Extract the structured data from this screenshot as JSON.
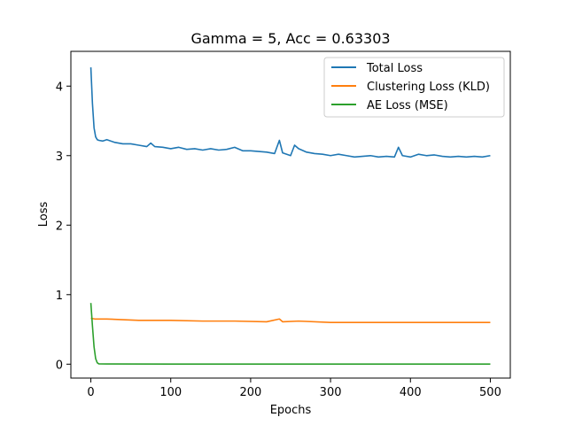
{
  "chart_data": {
    "type": "line",
    "title": "Gamma = 5, Acc = 0.63303",
    "xlabel": "Epochs",
    "ylabel": "Loss",
    "xlim": [
      -25,
      525
    ],
    "ylim": [
      -0.2,
      4.5
    ],
    "xticks": [
      0,
      100,
      200,
      300,
      400,
      500
    ],
    "yticks": [
      0,
      1,
      2,
      3,
      4
    ],
    "grid": false,
    "legend_position": "top-right",
    "series": [
      {
        "name": "Total Loss",
        "color": "#1f77b4",
        "points": [
          [
            0,
            4.27
          ],
          [
            2,
            3.75
          ],
          [
            4,
            3.4
          ],
          [
            6,
            3.27
          ],
          [
            8,
            3.23
          ],
          [
            10,
            3.22
          ],
          [
            15,
            3.21
          ],
          [
            20,
            3.23
          ],
          [
            30,
            3.19
          ],
          [
            40,
            3.17
          ],
          [
            50,
            3.17
          ],
          [
            60,
            3.15
          ],
          [
            70,
            3.13
          ],
          [
            75,
            3.18
          ],
          [
            80,
            3.13
          ],
          [
            90,
            3.12
          ],
          [
            100,
            3.1
          ],
          [
            110,
            3.12
          ],
          [
            120,
            3.09
          ],
          [
            130,
            3.1
          ],
          [
            140,
            3.08
          ],
          [
            150,
            3.1
          ],
          [
            160,
            3.08
          ],
          [
            170,
            3.09
          ],
          [
            180,
            3.12
          ],
          [
            190,
            3.07
          ],
          [
            200,
            3.07
          ],
          [
            210,
            3.06
          ],
          [
            220,
            3.05
          ],
          [
            230,
            3.03
          ],
          [
            236,
            3.22
          ],
          [
            240,
            3.04
          ],
          [
            250,
            3.0
          ],
          [
            255,
            3.15
          ],
          [
            260,
            3.1
          ],
          [
            270,
            3.05
          ],
          [
            280,
            3.03
          ],
          [
            290,
            3.02
          ],
          [
            300,
            3.0
          ],
          [
            310,
            3.02
          ],
          [
            320,
            3.0
          ],
          [
            330,
            2.98
          ],
          [
            340,
            2.99
          ],
          [
            350,
            3.0
          ],
          [
            360,
            2.98
          ],
          [
            370,
            2.99
          ],
          [
            380,
            2.98
          ],
          [
            385,
            3.12
          ],
          [
            390,
            3.0
          ],
          [
            400,
            2.98
          ],
          [
            410,
            3.02
          ],
          [
            420,
            3.0
          ],
          [
            430,
            3.01
          ],
          [
            440,
            2.99
          ],
          [
            450,
            2.98
          ],
          [
            460,
            2.99
          ],
          [
            470,
            2.98
          ],
          [
            480,
            2.99
          ],
          [
            490,
            2.98
          ],
          [
            500,
            3.0
          ]
        ]
      },
      {
        "name": "Clustering Loss (KLD)",
        "color": "#ff7f0e",
        "points": [
          [
            0,
            0.66
          ],
          [
            5,
            0.65
          ],
          [
            10,
            0.65
          ],
          [
            20,
            0.65
          ],
          [
            40,
            0.64
          ],
          [
            60,
            0.63
          ],
          [
            80,
            0.63
          ],
          [
            100,
            0.63
          ],
          [
            140,
            0.62
          ],
          [
            180,
            0.62
          ],
          [
            220,
            0.61
          ],
          [
            236,
            0.65
          ],
          [
            240,
            0.61
          ],
          [
            260,
            0.62
          ],
          [
            300,
            0.6
          ],
          [
            340,
            0.6
          ],
          [
            380,
            0.6
          ],
          [
            420,
            0.6
          ],
          [
            460,
            0.6
          ],
          [
            500,
            0.6
          ]
        ]
      },
      {
        "name": "AE Loss (MSE)",
        "color": "#2ca02c",
        "points": [
          [
            0,
            0.88
          ],
          [
            2,
            0.55
          ],
          [
            4,
            0.25
          ],
          [
            6,
            0.08
          ],
          [
            8,
            0.02
          ],
          [
            10,
            0.005
          ],
          [
            20,
            0.003
          ],
          [
            100,
            0.002
          ],
          [
            200,
            0.002
          ],
          [
            300,
            0.002
          ],
          [
            400,
            0.002
          ],
          [
            500,
            0.002
          ]
        ]
      }
    ]
  }
}
